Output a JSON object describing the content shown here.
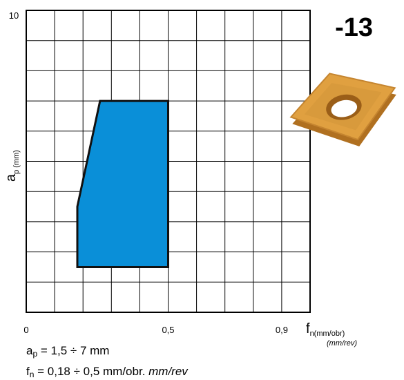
{
  "chart_data": {
    "type": "polygon",
    "title": "-13",
    "x": [
      0.18,
      0.5,
      0.5,
      0.26,
      0.18
    ],
    "y": [
      1.5,
      1.5,
      7,
      7,
      3.5
    ],
    "color": "#0a8fd8",
    "xlim": [
      0,
      1
    ],
    "ylim": [
      0,
      10
    ],
    "xticks": [
      0,
      {
        "value": 0.5,
        "label": "0,5"
      },
      {
        "value": 0.9,
        "label": "0,9"
      }
    ],
    "yticks": [
      10
    ],
    "xgrid": [
      0,
      0.1,
      0.2,
      0.3,
      0.4,
      0.5,
      0.6,
      0.7,
      0.8,
      0.9,
      1
    ],
    "ygrid": [
      0,
      1,
      2,
      3,
      4,
      5,
      6,
      7,
      8,
      9,
      10
    ],
    "xlabel": {
      "main": "f",
      "sub": "n(mm/obr)",
      "alt": "(mm/rev)"
    },
    "ylabel": {
      "main": "a",
      "sub": "p",
      "unit": "(mm)"
    },
    "notes": [
      {
        "sym": "a",
        "sub": "p",
        "text": " = 1,5 ÷ 7 mm"
      },
      {
        "sym": "f",
        "sub": "n",
        "text": " = 0,18 ÷ 0,5 mm/obr. ",
        "italic": "mm/rev"
      }
    ]
  }
}
